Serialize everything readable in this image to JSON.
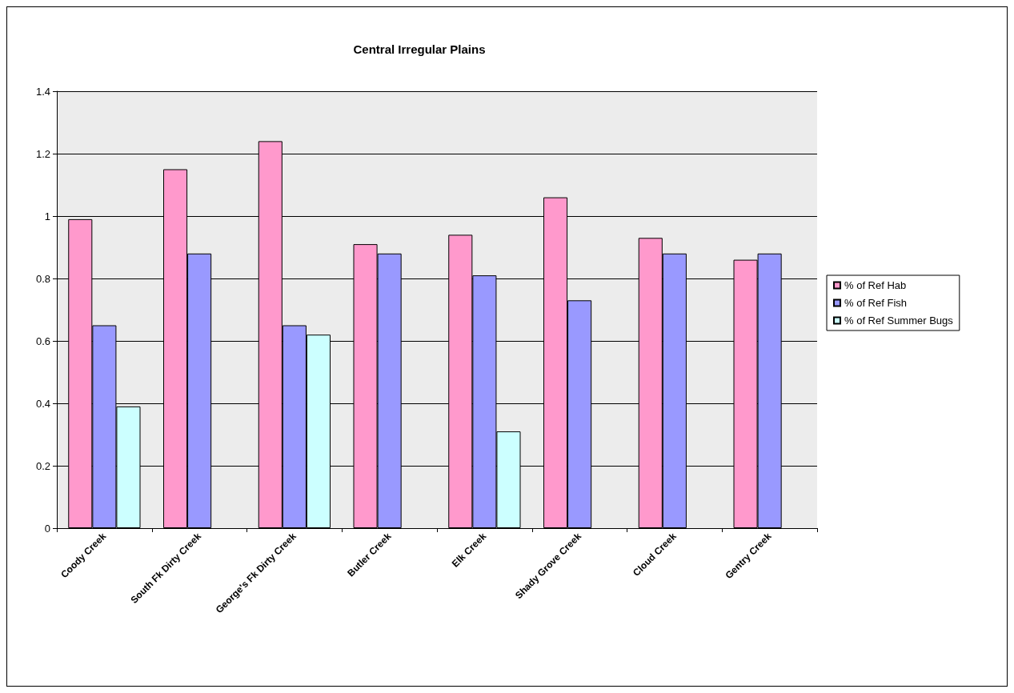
{
  "chart_data": {
    "type": "bar",
    "title": "Central Irregular Plains",
    "categories": [
      "Coody Creek",
      "South Fk Dirty Creek",
      "George's Fk Dirty Creek",
      "Butler Creek",
      "Elk Creek",
      "Shady Grove Creek",
      "Cloud Creek",
      "Gentry Creek"
    ],
    "series": [
      {
        "name": "% of Ref Hab",
        "color": "#ff99cc",
        "values": [
          0.99,
          1.15,
          1.24,
          0.91,
          0.94,
          1.06,
          0.93,
          0.86
        ]
      },
      {
        "name": "% of Ref Fish",
        "color": "#9999ff",
        "values": [
          0.65,
          0.88,
          0.65,
          0.88,
          0.81,
          0.73,
          0.88,
          0.88
        ]
      },
      {
        "name": "% of Ref Summer Bugs",
        "color": "#ccffff",
        "values": [
          0.39,
          null,
          0.62,
          null,
          0.31,
          null,
          null,
          null
        ]
      }
    ],
    "ylim": [
      0,
      1.4
    ],
    "yticks": [
      0,
      0.2,
      0.4,
      0.6,
      0.8,
      1,
      1.2,
      1.4
    ],
    "grid": "y",
    "legend": "right"
  }
}
